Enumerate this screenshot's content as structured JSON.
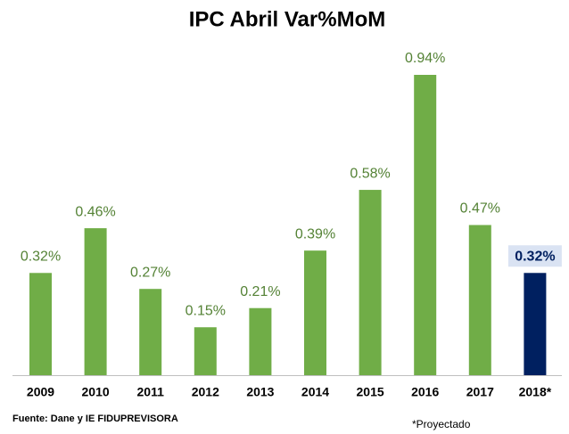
{
  "chart_data": {
    "type": "bar",
    "title": "IPC Abril Var%MoM",
    "categories": [
      "2009",
      "2010",
      "2011",
      "2012",
      "2013",
      "2014",
      "2015",
      "2016",
      "2017",
      "2018*"
    ],
    "values": [
      0.32,
      0.46,
      0.27,
      0.15,
      0.21,
      0.39,
      0.58,
      0.94,
      0.47,
      0.32
    ],
    "value_labels": [
      "0.32%",
      "0.46%",
      "0.27%",
      "0.15%",
      "0.21%",
      "0.39%",
      "0.58%",
      "0.94%",
      "0.47%",
      "0.32%"
    ],
    "colors": [
      "#70ad47",
      "#70ad47",
      "#70ad47",
      "#70ad47",
      "#70ad47",
      "#70ad47",
      "#70ad47",
      "#70ad47",
      "#70ad47",
      "#002060"
    ],
    "label_colors": [
      "#548235",
      "#548235",
      "#548235",
      "#548235",
      "#548235",
      "#548235",
      "#548235",
      "#548235",
      "#548235",
      "#002060"
    ],
    "highlight_index": 9,
    "highlight_color": "#dae3f3",
    "source": "Fuente: Dane y IE FIDUPREVISORA",
    "note": "*Proyectado"
  }
}
